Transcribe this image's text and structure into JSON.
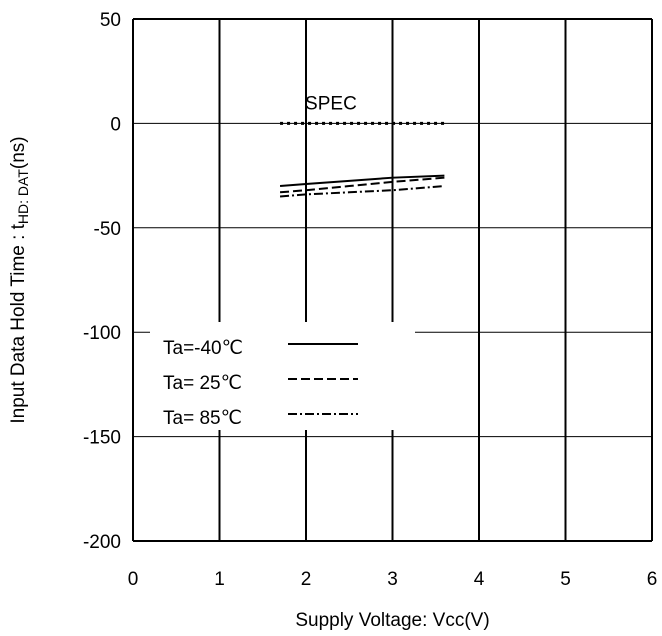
{
  "chart_data": {
    "type": "line",
    "xlabel": "Supply Voltage: Vcc(V)",
    "ylabel": "Input Data Hold Time : t",
    "ylabel_sub": "HD: DAT",
    "ylabel_suffix": "(ns)",
    "xlim": [
      0,
      6
    ],
    "ylim": [
      -200,
      50
    ],
    "xticks": [
      "0",
      "1",
      "2",
      "3",
      "4",
      "5",
      "6"
    ],
    "yticks": [
      "50",
      "0",
      "-50",
      "-100",
      "-150",
      "-200"
    ],
    "grid": true,
    "legend_position": "bottom-left",
    "series": [
      {
        "name": "Ta=-40℃",
        "style": "solid",
        "color": "#000000",
        "x": [
          1.7,
          2.0,
          2.5,
          3.0,
          3.6
        ],
        "y": [
          -30,
          -29,
          -27.5,
          -26,
          -25
        ]
      },
      {
        "name": "Ta= 25℃",
        "style": "dashed",
        "color": "#000000",
        "x": [
          1.7,
          2.0,
          2.5,
          3.0,
          3.6
        ],
        "y": [
          -33,
          -32,
          -30,
          -28,
          -26
        ]
      },
      {
        "name": "Ta= 85℃",
        "style": "dashdot",
        "color": "#000000",
        "x": [
          1.7,
          2.0,
          2.5,
          3.0,
          3.6
        ],
        "y": [
          -35,
          -34,
          -33,
          -32,
          -30
        ]
      }
    ],
    "spec": {
      "label": "SPEC",
      "x": [
        1.7,
        3.6
      ],
      "y": 0,
      "style": "dotted"
    }
  }
}
